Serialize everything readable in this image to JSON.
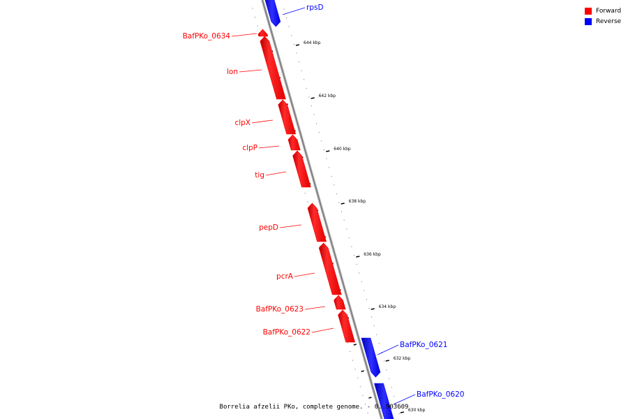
{
  "map": {
    "caption": "Borrelia afzelii PKo, complete genome. - 0..903609",
    "colors": {
      "forward": "#ff0000",
      "reverse": "#0000ff",
      "backbone": "#999999",
      "tick": "#000000"
    },
    "legend": [
      {
        "label": "Forward",
        "color": "#ff0000"
      },
      {
        "label": "Reverse",
        "color": "#0000ff"
      }
    ],
    "tick_labels": [
      "644 kbp",
      "642 kbp",
      "640 kbp",
      "638 kbp",
      "636 kbp",
      "634 kbp",
      "632 kbp",
      "630 kbp"
    ],
    "genes": [
      {
        "name": "rpsD",
        "strand": "reverse"
      },
      {
        "name": "BafPKo_0634",
        "strand": "forward"
      },
      {
        "name": "lon",
        "strand": "forward"
      },
      {
        "name": "clpX",
        "strand": "forward"
      },
      {
        "name": "clpP",
        "strand": "forward"
      },
      {
        "name": "tig",
        "strand": "forward"
      },
      {
        "name": "pepD",
        "strand": "forward"
      },
      {
        "name": "pcrA",
        "strand": "forward"
      },
      {
        "name": "BafPKo_0623",
        "strand": "forward"
      },
      {
        "name": "BafPKo_0622",
        "strand": "forward"
      },
      {
        "name": "BafPKo_0621",
        "strand": "reverse"
      },
      {
        "name": "BafPKo_0620",
        "strand": "reverse"
      }
    ]
  }
}
